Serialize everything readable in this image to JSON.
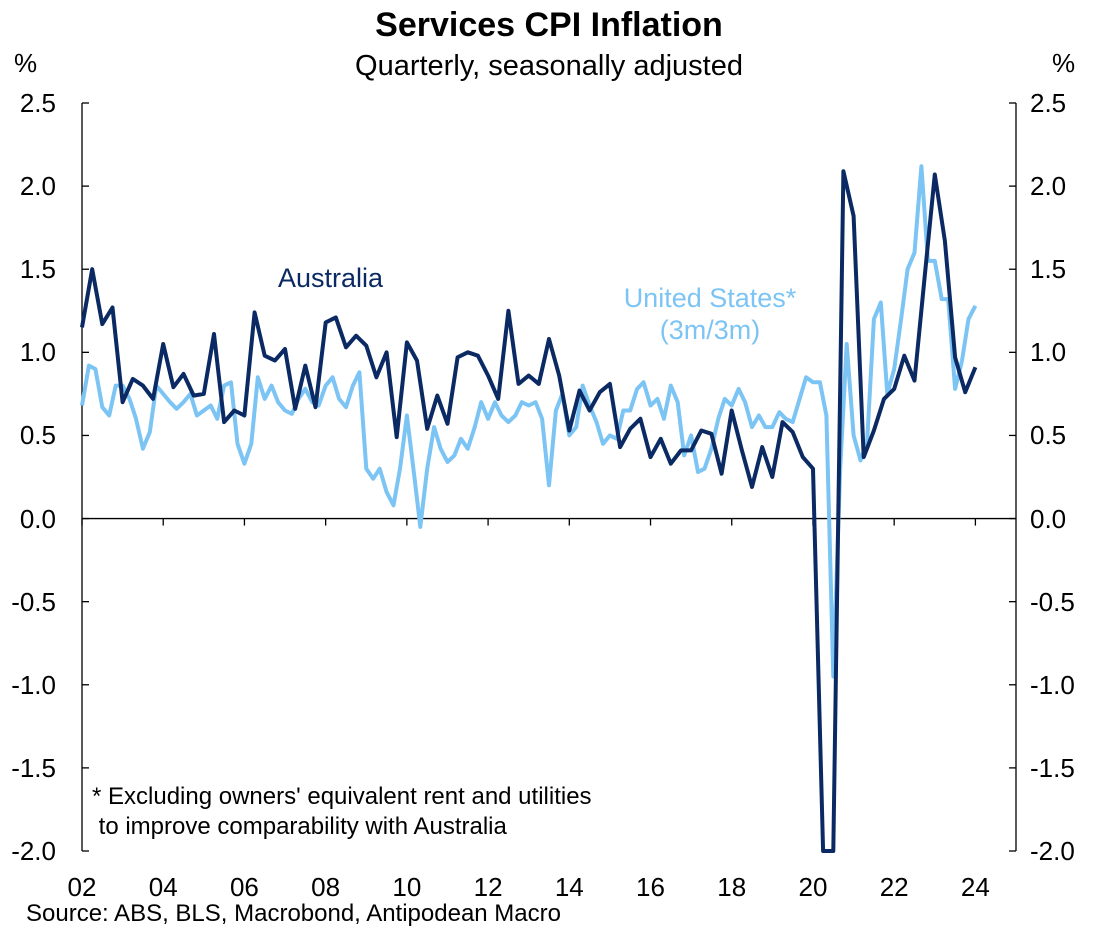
{
  "chart_data": {
    "type": "line",
    "title": "Services CPI Inflation",
    "subtitle": "Quarterly, seasonally adjusted",
    "ylabel_left": "%",
    "ylabel_right": "%",
    "ylim": [
      -2.0,
      2.5
    ],
    "xlim": [
      2002,
      2025
    ],
    "y_ticks": [
      "2.5",
      "2.0",
      "1.5",
      "1.0",
      "0.5",
      "0.0",
      "-0.5",
      "-1.0",
      "-1.5",
      "-2.0"
    ],
    "x_ticks": [
      "02",
      "04",
      "06",
      "08",
      "10",
      "12",
      "14",
      "16",
      "18",
      "20",
      "22",
      "24"
    ],
    "grid": false,
    "legend": "inline labels",
    "series_labels": {
      "australia": "Australia",
      "us_line1": "United States*",
      "us_line2": "(3m/3m)"
    },
    "series": [
      {
        "name": "Australia",
        "color": "#0b2a63",
        "x": [
          2002.0,
          2002.25,
          2002.5,
          2002.75,
          2003.0,
          2003.25,
          2003.5,
          2003.75,
          2004.0,
          2004.25,
          2004.5,
          2004.75,
          2005.0,
          2005.25,
          2005.5,
          2005.75,
          2006.0,
          2006.25,
          2006.5,
          2006.75,
          2007.0,
          2007.25,
          2007.5,
          2007.75,
          2008.0,
          2008.25,
          2008.5,
          2008.75,
          2009.0,
          2009.25,
          2009.5,
          2009.75,
          2010.0,
          2010.25,
          2010.5,
          2010.75,
          2011.0,
          2011.25,
          2011.5,
          2011.75,
          2012.0,
          2012.25,
          2012.5,
          2012.75,
          2013.0,
          2013.25,
          2013.5,
          2013.75,
          2014.0,
          2014.25,
          2014.5,
          2014.75,
          2015.0,
          2015.25,
          2015.5,
          2015.75,
          2016.0,
          2016.25,
          2016.5,
          2016.75,
          2017.0,
          2017.25,
          2017.5,
          2017.75,
          2018.0,
          2018.25,
          2018.5,
          2018.75,
          2019.0,
          2019.25,
          2019.5,
          2019.75,
          2020.0,
          2020.25,
          2020.5,
          2020.75,
          2021.0,
          2021.25,
          2021.5,
          2021.75,
          2022.0,
          2022.25,
          2022.5,
          2022.75,
          2023.0,
          2023.25,
          2023.5,
          2023.75,
          2024.0
        ],
        "values": [
          1.15,
          1.5,
          1.17,
          1.27,
          0.7,
          0.84,
          0.8,
          0.72,
          1.05,
          0.79,
          0.87,
          0.74,
          0.75,
          1.11,
          0.58,
          0.65,
          0.62,
          1.24,
          0.98,
          0.95,
          1.02,
          0.66,
          0.92,
          0.67,
          1.18,
          1.21,
          1.03,
          1.1,
          1.04,
          0.85,
          1.0,
          0.49,
          1.06,
          0.95,
          0.54,
          0.74,
          0.57,
          0.97,
          1.0,
          0.98,
          0.86,
          0.72,
          1.25,
          0.81,
          0.86,
          0.81,
          1.08,
          0.86,
          0.53,
          0.77,
          0.65,
          0.76,
          0.81,
          0.43,
          0.54,
          0.6,
          0.37,
          0.48,
          0.33,
          0.41,
          0.41,
          0.53,
          0.51,
          0.27,
          0.65,
          0.41,
          0.19,
          0.43,
          0.25,
          0.58,
          0.52,
          0.37,
          0.3,
          -2.0,
          -2.0,
          2.09,
          1.82,
          0.37,
          0.53,
          0.72,
          0.78,
          0.98,
          0.83,
          1.45,
          2.07,
          1.67,
          0.97,
          0.76,
          0.91
        ]
      },
      {
        "name": "United States* (3m/3m)",
        "color": "#7cc4f4",
        "x": [
          2002.0,
          2002.17,
          2002.33,
          2002.5,
          2002.67,
          2002.83,
          2003.0,
          2003.17,
          2003.33,
          2003.5,
          2003.67,
          2003.83,
          2004.0,
          2004.17,
          2004.33,
          2004.5,
          2004.67,
          2004.83,
          2005.0,
          2005.17,
          2005.33,
          2005.5,
          2005.67,
          2005.83,
          2006.0,
          2006.17,
          2006.33,
          2006.5,
          2006.67,
          2006.83,
          2007.0,
          2007.17,
          2007.33,
          2007.5,
          2007.67,
          2007.83,
          2008.0,
          2008.17,
          2008.33,
          2008.5,
          2008.67,
          2008.83,
          2009.0,
          2009.17,
          2009.33,
          2009.5,
          2009.67,
          2009.83,
          2010.0,
          2010.17,
          2010.33,
          2010.5,
          2010.67,
          2010.83,
          2011.0,
          2011.17,
          2011.33,
          2011.5,
          2011.67,
          2011.83,
          2012.0,
          2012.17,
          2012.33,
          2012.5,
          2012.67,
          2012.83,
          2013.0,
          2013.17,
          2013.33,
          2013.5,
          2013.67,
          2013.83,
          2014.0,
          2014.17,
          2014.33,
          2014.5,
          2014.67,
          2014.83,
          2015.0,
          2015.17,
          2015.33,
          2015.5,
          2015.67,
          2015.83,
          2016.0,
          2016.17,
          2016.33,
          2016.5,
          2016.67,
          2016.83,
          2017.0,
          2017.17,
          2017.33,
          2017.5,
          2017.67,
          2017.83,
          2018.0,
          2018.17,
          2018.33,
          2018.5,
          2018.67,
          2018.83,
          2019.0,
          2019.17,
          2019.33,
          2019.5,
          2019.67,
          2019.83,
          2020.0,
          2020.17,
          2020.33,
          2020.5,
          2020.67,
          2020.83,
          2021.0,
          2021.17,
          2021.33,
          2021.5,
          2021.67,
          2021.83,
          2022.0,
          2022.17,
          2022.33,
          2022.5,
          2022.67,
          2022.83,
          2023.0,
          2023.17,
          2023.33,
          2023.5,
          2023.67,
          2023.83,
          2024.0
        ],
        "values": [
          0.68,
          0.92,
          0.9,
          0.67,
          0.62,
          0.8,
          0.8,
          0.72,
          0.6,
          0.42,
          0.52,
          0.8,
          0.75,
          0.7,
          0.66,
          0.7,
          0.75,
          0.62,
          0.65,
          0.68,
          0.6,
          0.8,
          0.82,
          0.45,
          0.33,
          0.45,
          0.85,
          0.72,
          0.8,
          0.7,
          0.65,
          0.63,
          0.72,
          0.78,
          0.7,
          0.68,
          0.8,
          0.85,
          0.72,
          0.67,
          0.8,
          0.88,
          0.3,
          0.24,
          0.3,
          0.16,
          0.08,
          0.3,
          0.62,
          0.28,
          -0.05,
          0.3,
          0.55,
          0.42,
          0.34,
          0.38,
          0.48,
          0.42,
          0.55,
          0.7,
          0.6,
          0.7,
          0.62,
          0.58,
          0.62,
          0.7,
          0.68,
          0.7,
          0.6,
          0.2,
          0.65,
          0.75,
          0.5,
          0.55,
          0.8,
          0.68,
          0.58,
          0.45,
          0.5,
          0.48,
          0.65,
          0.65,
          0.78,
          0.82,
          0.68,
          0.72,
          0.6,
          0.8,
          0.7,
          0.38,
          0.5,
          0.28,
          0.3,
          0.42,
          0.6,
          0.72,
          0.68,
          0.78,
          0.7,
          0.55,
          0.62,
          0.55,
          0.55,
          0.64,
          0.6,
          0.58,
          0.72,
          0.85,
          0.82,
          0.82,
          0.62,
          -0.95,
          0.3,
          1.05,
          0.5,
          0.35,
          0.45,
          1.2,
          1.3,
          0.75,
          0.9,
          1.2,
          1.5,
          1.6,
          2.12,
          1.55,
          1.55,
          1.32,
          1.32,
          0.78,
          0.95,
          1.2,
          1.28
        ]
      }
    ],
    "note": "* Excluding owners' equivalent rent and utilities\n to improve comparability with Australia",
    "source": "Source: ABS, BLS, Macrobond, Antipodean Macro"
  }
}
